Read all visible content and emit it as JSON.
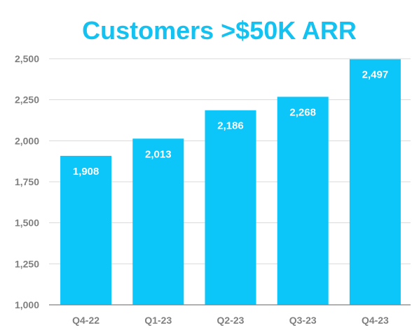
{
  "chart_data": {
    "type": "bar",
    "title": "Customers >$50K ARR",
    "categories": [
      "Q4-22",
      "Q1-23",
      "Q2-23",
      "Q3-23",
      "Q4-23"
    ],
    "values": [
      1908,
      2013,
      2186,
      2268,
      2497
    ],
    "data_labels": [
      "1,908",
      "2,013",
      "2,186",
      "2,268",
      "2,497"
    ],
    "ylim": [
      1000,
      2500
    ],
    "yticks": [
      1000,
      1250,
      1500,
      1750,
      2000,
      2250,
      2500
    ],
    "ytick_labels": [
      "1,000",
      "1,250",
      "1,500",
      "1,750",
      "2,000",
      "2,250",
      "2,500"
    ],
    "xlabel": "",
    "ylabel": "",
    "grid": true,
    "legend": "none",
    "colors": {
      "bar": "#0CC5F9",
      "title": "#14C2F2",
      "grid": "#D9D9D9",
      "tick_text": "#808080",
      "axis": "#808080"
    }
  }
}
